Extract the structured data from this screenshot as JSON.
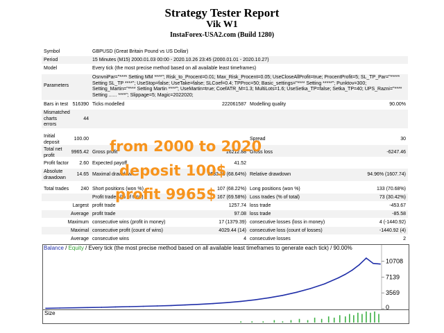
{
  "header": {
    "title": "Strategy Tester Report",
    "subtitle": "Vik W1",
    "broker": "InstaForex-USA2.com (Build 1280)"
  },
  "info": {
    "symbol_label": "Symbol",
    "symbol_value": "GBPUSD (Great Britain Pound vs US Dollar)",
    "period_label": "Period",
    "period_value": "15 Minutes (M15) 2000.01.03 00:00 - 2020.10.26 23:45 (2000.01.01 - 2020.10.27)",
    "model_label": "Model",
    "model_value": "Every tick (the most precise method based on all available least timeframes)",
    "parameters_label": "Parameters",
    "parameters_value": "OsnvniPar=\"**** Setting MM ****\"; Risk_to_Procent=0.01; Max_Risk_Procent=0.05; UseCloseAllProfit=true; ProcentProfit=5; SL_TP_Par=\"***** Setting SL_TP ****\"; UseStop=false; UseTake=false; SLCoef=0.4; TPProc=50; Basic_settings=\"**** Setting *****\"; Punktov=300; Setting_Martin=\"**** Setting Martin ****\"; UseMartin=true; CoefATR_M=1.3; MultiLots=1.6; UseSetka_TP=false; Setka_TP=40; UPS_Razni=\"**** Setting ...... ****\"; Slippage=5; Magic=2022020;"
  },
  "bars": {
    "bars_label": "Bars in test",
    "bars_value": "516390",
    "ticks_label": "Ticks modelled",
    "ticks_value": "222061587",
    "quality_label": "Modelling quality",
    "quality_value": "90.00%"
  },
  "mismatch": {
    "label": "Mismatched charts errors",
    "value": "44"
  },
  "stats": {
    "initial_deposit_label": "Initial deposit",
    "initial_deposit_value": "100.00",
    "spread_label": "Spread",
    "spread_value": "30",
    "net_profit_label": "Total net profit",
    "net_profit_value": "9965.42",
    "gross_profit_label": "Gross profit",
    "gross_profit_value": "16212.88",
    "gross_loss_label": "Gross loss",
    "gross_loss_value": "-6247.46",
    "profit_factor_label": "Profit factor",
    "profit_factor_value": "2.60",
    "expected_payoff_label": "Expected payoff",
    "expected_payoff_value": "41.52",
    "abs_drawdown_label": "Absolute drawdown",
    "abs_drawdown_value": "14.65",
    "max_drawdown_label": "Maximal drawdown",
    "max_drawdown_value": "3633.20 (68.64%)",
    "rel_drawdown_label": "Relative drawdown",
    "rel_drawdown_value": "94.96% (1607.74)",
    "total_trades_label": "Total trades",
    "total_trades_value": "240",
    "short_label": "Short positions (won %)",
    "short_value": "107 (68.22%)",
    "long_label": "Long positions (won %)",
    "long_value": "133 (70.68%)",
    "profit_trades_label": "Profit trades (% of total)",
    "profit_trades_value": "167 (69.58%)",
    "loss_trades_label": "Loss trades (% of total)",
    "loss_trades_value": "73 (30.42%)",
    "largest_label": "Largest",
    "largest_profit_label": "profit trade",
    "largest_profit_value": "1257.74",
    "largest_loss_label": "loss trade",
    "largest_loss_value": "-453.67",
    "average_label": "Average",
    "average_profit_label": "profit trade",
    "average_profit_value": "97.08",
    "average_loss_label": "loss trade",
    "average_loss_value": "-85.58",
    "maximum_label": "Maximum",
    "max_consec_wins_label": "consecutive wins (profit in money)",
    "max_consec_wins_value": "17 (1379.39)",
    "max_consec_losses_label": "consecutive losses (loss in money)",
    "max_consec_losses_value": "4 (-1440.92)",
    "maximal_label": "Maximal",
    "maximal_consec_profit_label": "consecutive profit (count of wins)",
    "maximal_consec_profit_value": "4029.44 (14)",
    "maximal_consec_loss_label": "consecutive loss (count of losses)",
    "maximal_consec_loss_value": "-1440.92 (4)",
    "avg_consec_label": "Average",
    "avg_consec_wins_label": "consecutive wins",
    "avg_consec_wins_value": "4",
    "avg_consec_losses_label": "consecutive losses",
    "avg_consec_losses_value": "2"
  },
  "overlay": {
    "line1": "from 2000 to 2020",
    "line2": "deposit 100$",
    "line3": "profit  9965$"
  },
  "chart": {
    "legend_balance": "Balance",
    "legend_sep": " / ",
    "legend_equity": "Equity",
    "legend_rest": " / Every tick (the most precise method based on all available least timeframes to generate each tick) / 90.00%",
    "size_label": "Size",
    "balance_color": "#1f2ea8",
    "equity_color": "#2e9e2e",
    "size_color": "#3cb043"
  },
  "chart_data": {
    "type": "line",
    "yticks": [
      "10708",
      "7139",
      "3569",
      "0"
    ],
    "ylim": [
      0,
      12500
    ],
    "series": [
      {
        "name": "Balance",
        "x": [
          0,
          10,
          20,
          30,
          40,
          50,
          60,
          70,
          80,
          90,
          100,
          110,
          120,
          130,
          140,
          150,
          160,
          170,
          180,
          190,
          200,
          210,
          215,
          220,
          225,
          230,
          235,
          240
        ],
        "values": [
          100,
          150,
          200,
          260,
          320,
          400,
          470,
          540,
          630,
          720,
          850,
          980,
          1150,
          1380,
          1650,
          2000,
          2450,
          3000,
          3700,
          4550,
          5600,
          6950,
          7750,
          8700,
          9900,
          11400,
          10200,
          10065
        ]
      }
    ],
    "size_bars": [
      {
        "x": 140,
        "value": 1
      },
      {
        "x": 148,
        "value": 1
      },
      {
        "x": 156,
        "value": 1
      },
      {
        "x": 164,
        "value": 2
      },
      {
        "x": 170,
        "value": 1
      },
      {
        "x": 176,
        "value": 2
      },
      {
        "x": 182,
        "value": 3
      },
      {
        "x": 188,
        "value": 2
      },
      {
        "x": 193,
        "value": 4
      },
      {
        "x": 198,
        "value": 3
      },
      {
        "x": 203,
        "value": 5
      },
      {
        "x": 207,
        "value": 4
      },
      {
        "x": 211,
        "value": 6
      },
      {
        "x": 215,
        "value": 5
      },
      {
        "x": 218,
        "value": 7
      },
      {
        "x": 221,
        "value": 6
      },
      {
        "x": 224,
        "value": 8
      },
      {
        "x": 227,
        "value": 7
      },
      {
        "x": 230,
        "value": 9
      },
      {
        "x": 233,
        "value": 8
      },
      {
        "x": 236,
        "value": 9
      },
      {
        "x": 239,
        "value": 7
      }
    ]
  }
}
